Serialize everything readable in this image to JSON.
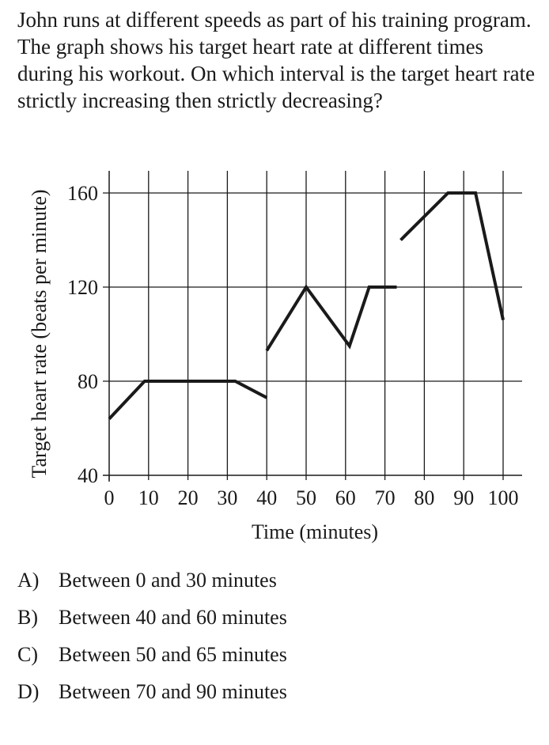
{
  "question": {
    "text": "John runs at different speeds as part of his training program.  The graph shows his target heart rate at different times during his workout.  On which interval is the target heart rate strictly increasing then strictly decreasing?"
  },
  "chart_data": {
    "type": "line",
    "xlabel": "Time (minutes)",
    "ylabel": "Target heart rate (beats per minute)",
    "xlim": [
      0,
      100
    ],
    "ylim": [
      40,
      160
    ],
    "x_ticks": [
      0,
      10,
      20,
      30,
      40,
      50,
      60,
      70,
      80,
      90,
      100
    ],
    "y_ticks": [
      40,
      80,
      120,
      160
    ],
    "x_tick_labels": [
      "0",
      "10",
      "20",
      "30",
      "40",
      "50",
      "60",
      "70",
      "80",
      "90",
      "100"
    ],
    "y_tick_labels": [
      "40",
      "80",
      "120",
      "160"
    ],
    "grid": true,
    "segments": [
      {
        "x": [
          0,
          9,
          32,
          40
        ],
        "y": [
          64,
          80,
          80,
          73
        ]
      },
      {
        "x": [
          40,
          50,
          61,
          66,
          73
        ],
        "y": [
          93,
          120,
          95,
          120,
          120
        ]
      },
      {
        "x": [
          74,
          86,
          93,
          100
        ],
        "y": [
          140,
          160,
          160,
          106
        ]
      }
    ],
    "line_color": "#1a1a1a",
    "grid_color": "#1a1a1a"
  },
  "choices": [
    {
      "letter": "A)",
      "text": "Between 0 and 30 minutes"
    },
    {
      "letter": "B)",
      "text": "Between 40 and 60 minutes"
    },
    {
      "letter": "C)",
      "text": "Between 50 and 65 minutes"
    },
    {
      "letter": "D)",
      "text": "Between 70 and 90 minutes"
    }
  ]
}
